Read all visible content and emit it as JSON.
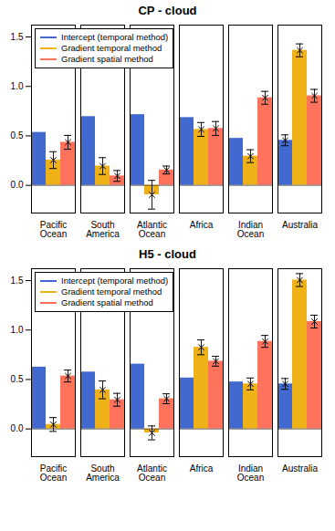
{
  "chart_data": [
    {
      "type": "bar",
      "title": "CP - cloud",
      "categories": [
        "Pacific\nOcean",
        "South\nAmerica",
        "Atlantic\nOcean",
        "Africa",
        "Indian\nOcean",
        "Australia"
      ],
      "series": [
        {
          "name": "Intercept (temporal method)",
          "values": [
            0.535,
            0.695,
            0.715,
            0.685,
            0.475,
            0.455
          ],
          "errors": [
            0.0,
            0.0,
            0.0,
            0.0,
            0.0,
            0.055
          ]
        },
        {
          "name": "Gradient temporal method",
          "values": [
            0.255,
            0.195,
            -0.095,
            0.565,
            0.295,
            1.365
          ],
          "errors": [
            0.085,
            0.085,
            0.145,
            0.07,
            0.065,
            0.065
          ]
        },
        {
          "name": "Gradient spatial method",
          "values": [
            0.435,
            0.095,
            0.155,
            0.575,
            0.885,
            0.905
          ],
          "errors": [
            0.07,
            0.055,
            0.04,
            0.07,
            0.065,
            0.065
          ]
        }
      ],
      "ylim": [
        -0.28,
        1.62
      ],
      "yticks": [
        {
          "value": 0.0,
          "label": "0.0"
        },
        0.5,
        {
          "value": 1.0,
          "label": "1.0"
        },
        1.5
      ],
      "grid": false,
      "legend": "upper left"
    },
    {
      "type": "bar",
      "title": "H5 - cloud",
      "categories": [
        "Pacific\nOcean",
        "South\nAmerica",
        "Atlantic\nOcean",
        "Africa",
        "Indian\nOcean",
        "Australia"
      ],
      "series": [
        {
          "name": "Intercept (temporal method)",
          "values": [
            0.625,
            0.575,
            0.655,
            0.515,
            0.475,
            0.455
          ],
          "errors": [
            0.0,
            0.0,
            0.0,
            0.0,
            0.0,
            0.055
          ]
        },
        {
          "name": "Gradient temporal method",
          "values": [
            0.045,
            0.395,
            -0.04,
            0.825,
            0.455,
            1.505
          ],
          "errors": [
            0.07,
            0.09,
            0.07,
            0.075,
            0.06,
            0.065
          ]
        },
        {
          "name": "Gradient spatial method",
          "values": [
            0.535,
            0.295,
            0.305,
            0.685,
            0.885,
            1.085
          ],
          "errors": [
            0.06,
            0.065,
            0.05,
            0.05,
            0.06,
            0.065
          ]
        }
      ],
      "ylim": [
        -0.28,
        1.62
      ],
      "yticks": [
        {
          "value": 0.0,
          "label": "0.0"
        },
        0.5,
        {
          "value": 1.0,
          "label": "1.0"
        },
        1.5
      ],
      "grid": false,
      "legend": "upper left"
    }
  ]
}
